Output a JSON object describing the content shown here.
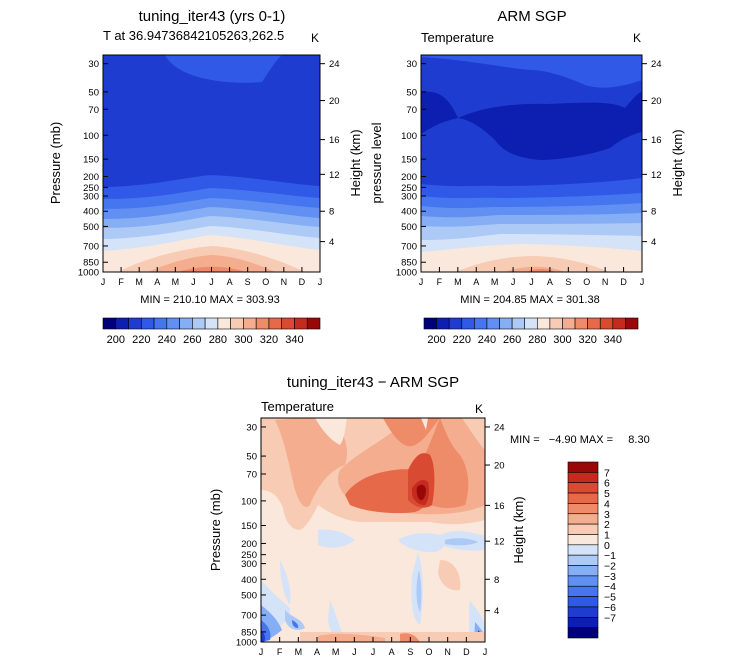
{
  "palette": [
    "#00007a",
    "#0c1fb0",
    "#1f3cd0",
    "#2f59e6",
    "#4576f0",
    "#6190f2",
    "#86aef4",
    "#adc9f6",
    "#d4e3f8",
    "#fbe8dc",
    "#f8ccb4",
    "#f4ad8e",
    "#ee8b68",
    "#e66a4a",
    "#d94a32",
    "#c52a1e",
    "#990808"
  ],
  "months": [
    "J",
    "F",
    "M",
    "A",
    "M",
    "J",
    "J",
    "A",
    "S",
    "O",
    "N",
    "D",
    "J"
  ],
  "pressure_ticks": [
    "30",
    "50",
    "70",
    "100",
    "150",
    "200",
    "250",
    "300",
    "400",
    "500",
    "700",
    "850",
    "1000"
  ],
  "height_ticks": [
    "24",
    "20",
    "16",
    "12",
    "8",
    "4"
  ],
  "chart_data": [
    {
      "type": "heatmap",
      "title": "tuning_iter43 (yrs 0-1)",
      "subtitle": "T at 36.94736842105263,262.5",
      "units": "K",
      "ylabel": "Pressure (mb)",
      "y2label": "Height (km)",
      "stats_text": "MIN = 210.10 MAX = 303.93",
      "min": 210.1,
      "max": 303.93,
      "colorbar_labels": [
        "200",
        "220",
        "240",
        "260",
        "280",
        "300",
        "320",
        "340"
      ]
    },
    {
      "type": "heatmap",
      "title": "ARM SGP",
      "subtitle": "Temperature",
      "units": "K",
      "ylabel": "pressure level",
      "y2label": "Height (km)",
      "stats_text": "MIN = 204.85 MAX = 301.38",
      "min": 204.85,
      "max": 301.38,
      "colorbar_labels": [
        "200",
        "220",
        "240",
        "260",
        "280",
        "300",
        "320",
        "340"
      ]
    },
    {
      "type": "heatmap",
      "title": "tuning_iter43 − ARM SGP",
      "subtitle": "Temperature",
      "units": "K",
      "ylabel": "Pressure (mb)",
      "y2label": "Height (km)",
      "stats_text": "MIN =   −4.90 MAX =     8.30",
      "min": -4.9,
      "max": 8.3,
      "colorbar_labels": [
        "7",
        "6",
        "5",
        "4",
        "3",
        "2",
        "1",
        "0",
        "−1",
        "−2",
        "−3",
        "−4",
        "−5",
        "−6",
        "−7"
      ]
    }
  ]
}
